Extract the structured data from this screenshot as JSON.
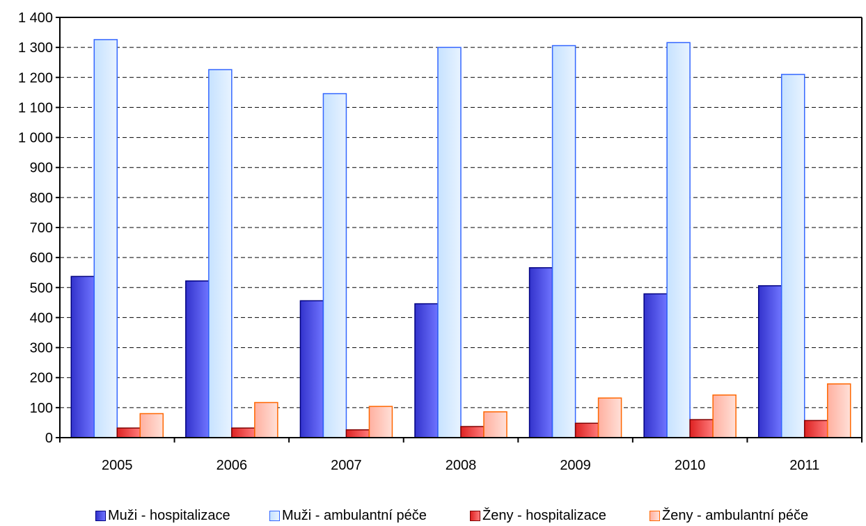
{
  "chart_data": {
    "type": "bar",
    "title": "",
    "xlabel": "",
    "ylabel": "",
    "categories": [
      "2005",
      "2006",
      "2007",
      "2008",
      "2009",
      "2010",
      "2011"
    ],
    "ylim": [
      0,
      1400
    ],
    "yticks": [
      0,
      100,
      200,
      300,
      400,
      500,
      600,
      700,
      800,
      900,
      1000,
      1100,
      1200,
      1300,
      1400
    ],
    "ytick_labels": [
      "0",
      "100",
      "200",
      "300",
      "400",
      "500",
      "600",
      "700",
      "800",
      "900",
      "1 000",
      "1 100",
      "1 200",
      "1 300",
      "1 400"
    ],
    "grid": "horizontal dashed",
    "legend_position": "bottom",
    "series": [
      {
        "name": "Muži - hospitalizace",
        "values": [
          537,
          522,
          456,
          446,
          566,
          479,
          506
        ],
        "color": "#3333cc",
        "edge": "#000080",
        "light": "#6f74ff"
      },
      {
        "name": "Muži - ambulantní péče",
        "values": [
          1326,
          1226,
          1146,
          1300,
          1306,
          1316,
          1210
        ],
        "color": "#c6e2ff",
        "edge": "#3366ff",
        "light": "#e8f3ff"
      },
      {
        "name": "Ženy - hospitalizace",
        "values": [
          32,
          32,
          26,
          37,
          48,
          60,
          57
        ],
        "color": "#dd2222",
        "edge": "#800000",
        "light": "#ff7a7a"
      },
      {
        "name": "Ženy - ambulantní péče",
        "values": [
          80,
          117,
          104,
          86,
          132,
          142,
          179
        ],
        "color": "#ffb0a0",
        "edge": "#ff6600",
        "light": "#ffe0d8"
      }
    ]
  }
}
